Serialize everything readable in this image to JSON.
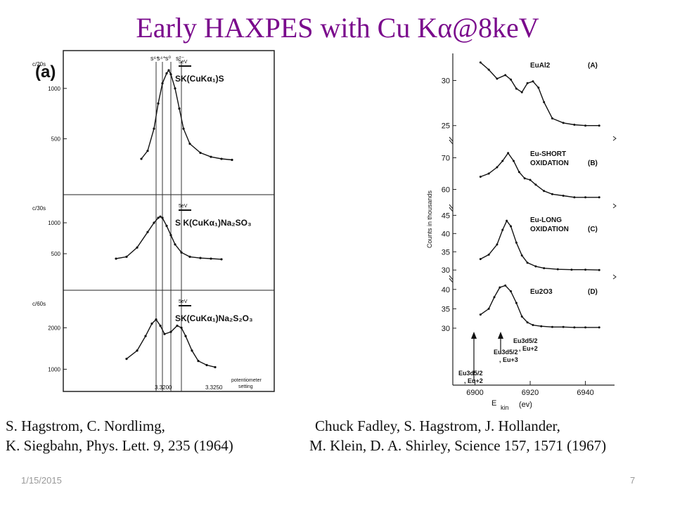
{
  "slide": {
    "title": "Early HAXPES with Cu Kα@8keV",
    "date": "1/15/2015",
    "page_number": "7"
  },
  "citations": {
    "left_line1": "S. Hagstrom, C. Nordlimg,",
    "left_line2": "K. Siegbahn, Phys. Lett. 9, 235 (1964)",
    "right_line1": "Chuck Fadley, S. Hagstrom, J. Hollander,",
    "right_line2": "M. Klein, D. A. Shirley, Science 157,  1571 (1967)"
  },
  "chart_data": [
    {
      "type": "line",
      "panel_label": "(a)",
      "top_labels": [
        "s⁶⁺",
        "s⁴⁺",
        "s⁰",
        "s²⁻"
      ],
      "x_ticks": [
        "3.3200",
        "3.3250"
      ],
      "xlabel": "potentiometer setting",
      "panels": [
        {
          "ylabel": "c/20s",
          "y_ticks": [
            500,
            1000
          ],
          "scale_bar": "5eV",
          "label": "SK(CuKα₁)S",
          "series": [
            {
              "x": [
                0.37,
                0.4,
                0.43,
                0.45,
                0.47,
                0.49,
                0.5,
                0.51,
                0.53,
                0.55,
                0.57,
                0.6,
                0.65,
                0.7,
                0.75,
                0.8
              ],
              "values": [
                300,
                380,
                600,
                850,
                1050,
                1150,
                1180,
                1140,
                1000,
                800,
                600,
                450,
                360,
                320,
                300,
                290
              ]
            }
          ]
        },
        {
          "ylabel": "c/30s",
          "y_ticks": [
            500,
            1000
          ],
          "scale_bar": "5eV",
          "label": "S K(CuKα₁)Na₂SO₃",
          "series": [
            {
              "x": [
                0.25,
                0.3,
                0.35,
                0.4,
                0.43,
                0.45,
                0.46,
                0.47,
                0.49,
                0.51,
                0.53,
                0.56,
                0.6,
                0.65,
                0.7,
                0.75
              ],
              "values": [
                420,
                450,
                600,
                850,
                1000,
                1080,
                1100,
                1080,
                950,
                800,
                650,
                520,
                450,
                430,
                420,
                410
              ]
            }
          ]
        },
        {
          "ylabel": "c/60s",
          "y_ticks": [
            1000,
            2000
          ],
          "scale_bar": "5eV",
          "label": "SK(CuKα₁)Na₂S₂O₃",
          "series": [
            {
              "x": [
                0.3,
                0.35,
                0.39,
                0.42,
                0.44,
                0.46,
                0.48,
                0.51,
                0.54,
                0.56,
                0.58,
                0.61,
                0.64,
                0.68,
                0.72
              ],
              "values": [
                1250,
                1450,
                1800,
                2100,
                2200,
                2050,
                1850,
                1900,
                2050,
                2000,
                1800,
                1450,
                1200,
                1100,
                1050
              ]
            }
          ]
        }
      ]
    },
    {
      "type": "line",
      "xlabel": "E kin (ev)",
      "ylabel": "Counts in thousands",
      "x_ticks": [
        6900,
        6920,
        6940
      ],
      "xlim": [
        6893,
        6948
      ],
      "annotations": [
        "Eu3d5/2 , Eu+2",
        "Eu3d5/2 , Eu+3",
        "Eu3d5/2 , Eu+2"
      ],
      "panels": [
        {
          "label": "EuAl2",
          "tag": "(A)",
          "y_ticks": [
            25,
            30
          ],
          "ylim": [
            23.5,
            33
          ],
          "series": [
            {
              "x": [
                6902,
                6905,
                6908,
                6911,
                6913,
                6915,
                6917,
                6919,
                6921,
                6923,
                6925,
                6928,
                6932,
                6936,
                6940,
                6945
              ],
              "values": [
                32,
                31.2,
                30.2,
                30.6,
                30.1,
                29.1,
                28.7,
                29.7,
                29.9,
                29.2,
                27.6,
                25.8,
                25.3,
                25.1,
                25.0,
                25.0
              ]
            }
          ]
        },
        {
          "label": "Eu-SHORT OXIDATION",
          "tag": "(B)",
          "y_ticks": [
            60,
            70
          ],
          "ylim": [
            55,
            75
          ],
          "series": [
            {
              "x": [
                6902,
                6905,
                6908,
                6910,
                6912,
                6914,
                6916,
                6918,
                6920,
                6922,
                6925,
                6928,
                6932,
                6936,
                6940,
                6945
              ],
              "values": [
                64,
                65,
                67,
                69,
                71.5,
                69,
                65.5,
                63.5,
                63,
                61.5,
                59.5,
                58.5,
                58,
                57.5,
                57.5,
                57.5
              ]
            }
          ]
        },
        {
          "label": "Eu-LONG OXIDATION",
          "tag": "(C)",
          "y_ticks": [
            30,
            35,
            40,
            45
          ],
          "ylim": [
            28.5,
            47
          ],
          "series": [
            {
              "x": [
                6902,
                6905,
                6908,
                6910,
                6911.5,
                6913,
                6915,
                6917,
                6919,
                6922,
                6925,
                6930,
                6935,
                6940,
                6945
              ],
              "values": [
                33,
                34.2,
                37,
                41,
                43.5,
                42,
                37.5,
                34,
                32,
                31,
                30.5,
                30.2,
                30.1,
                30.1,
                30.0
              ]
            }
          ]
        },
        {
          "label": "Eu2O3",
          "tag": "(D)",
          "y_ticks": [
            30,
            35,
            40
          ],
          "ylim": [
            28,
            42.5
          ],
          "series": [
            {
              "x": [
                6902,
                6905,
                6907,
                6909,
                6911,
                6913,
                6915,
                6917,
                6919,
                6921,
                6924,
                6928,
                6932,
                6936,
                6940,
                6945
              ],
              "values": [
                33.5,
                35,
                38,
                40.5,
                41,
                39.5,
                36.5,
                33,
                31.5,
                30.8,
                30.5,
                30.3,
                30.3,
                30.2,
                30.2,
                30.2
              ]
            }
          ]
        }
      ]
    }
  ]
}
